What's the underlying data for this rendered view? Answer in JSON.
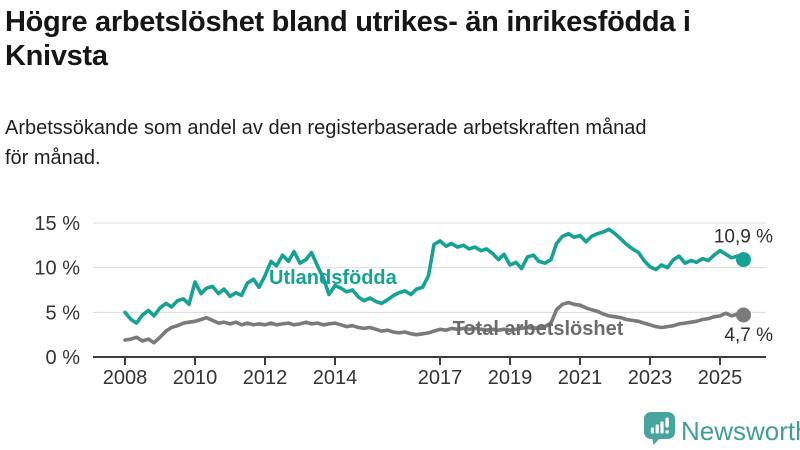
{
  "header": {
    "title": "Högre arbetslöshet bland utrikes- än inrikesfödda i\nKnivsta",
    "subtitle": "Arbetssökande som andel av den registerbaserade arbetskraften månad\nför månad."
  },
  "footer": {
    "brand": "Newsworthy",
    "logo_icon": "newsworthy-speech-bubble-bar-chart-icon"
  },
  "colors": {
    "accent_teal": "#14a294",
    "series_gray": "#7a7a7a",
    "gray_label": "#6b6b6b",
    "axis_line": "#3d3d3d",
    "gridline": "#dcdcdc",
    "tick_text": "#333333",
    "end_label_text": "#2e2e2e",
    "brand_teal": "#47a5a0"
  },
  "chart_data": {
    "type": "line",
    "title": "Högre arbetslöshet bland utrikes- än inrikesfödda i Knivsta",
    "subtitle": "Arbetssökande som andel av den registerbaserade arbetskraften månad för månad.",
    "xlabel": "",
    "ylabel": "",
    "grid": "horizontal",
    "legend_position": "inline-labels",
    "x_axis": {
      "ticks": [
        2008,
        2010,
        2012,
        2014,
        2017,
        2019,
        2021,
        2023,
        2025
      ],
      "range": [
        2007.1,
        2026.3
      ]
    },
    "y_axis": {
      "ticks": [
        0,
        5,
        10,
        15
      ],
      "tick_suffix": " %",
      "range": [
        0,
        15
      ]
    },
    "series": [
      {
        "name": "Utlandsfödda",
        "color": "#14a294",
        "label_color": "#14a294",
        "label_pos": [
          2013.94,
          8.95
        ],
        "end_label": "10,9 %",
        "end_value": 10.9,
        "points": [
          [
            2008.0,
            5.0
          ],
          [
            2008.17,
            4.2
          ],
          [
            2008.33,
            3.8
          ],
          [
            2008.5,
            4.7
          ],
          [
            2008.67,
            5.2
          ],
          [
            2008.83,
            4.6
          ],
          [
            2009.0,
            5.5
          ],
          [
            2009.17,
            6.0
          ],
          [
            2009.33,
            5.6
          ],
          [
            2009.5,
            6.3
          ],
          [
            2009.67,
            6.5
          ],
          [
            2009.83,
            5.9
          ],
          [
            2010.0,
            8.4
          ],
          [
            2010.17,
            7.1
          ],
          [
            2010.33,
            7.7
          ],
          [
            2010.5,
            7.9
          ],
          [
            2010.67,
            7.1
          ],
          [
            2010.83,
            7.6
          ],
          [
            2011.0,
            6.8
          ],
          [
            2011.17,
            7.2
          ],
          [
            2011.33,
            6.9
          ],
          [
            2011.5,
            8.3
          ],
          [
            2011.67,
            8.7
          ],
          [
            2011.83,
            7.8
          ],
          [
            2012.0,
            9.1
          ],
          [
            2012.17,
            10.7
          ],
          [
            2012.33,
            10.2
          ],
          [
            2012.5,
            11.4
          ],
          [
            2012.67,
            10.7
          ],
          [
            2012.83,
            11.8
          ],
          [
            2013.0,
            10.5
          ],
          [
            2013.17,
            10.9
          ],
          [
            2013.33,
            11.7
          ],
          [
            2013.5,
            10.2
          ],
          [
            2013.67,
            8.8
          ],
          [
            2013.83,
            7.0
          ],
          [
            2014.0,
            8.0
          ],
          [
            2014.17,
            7.7
          ],
          [
            2014.33,
            7.3
          ],
          [
            2014.5,
            7.5
          ],
          [
            2014.67,
            6.7
          ],
          [
            2014.83,
            6.3
          ],
          [
            2015.0,
            6.6
          ],
          [
            2015.17,
            6.2
          ],
          [
            2015.33,
            6.0
          ],
          [
            2015.5,
            6.4
          ],
          [
            2015.67,
            6.9
          ],
          [
            2015.83,
            7.2
          ],
          [
            2016.0,
            7.4
          ],
          [
            2016.17,
            7.0
          ],
          [
            2016.33,
            7.6
          ],
          [
            2016.5,
            7.8
          ],
          [
            2016.67,
            9.1
          ],
          [
            2016.83,
            12.6
          ],
          [
            2017.0,
            13.0
          ],
          [
            2017.17,
            12.4
          ],
          [
            2017.33,
            12.7
          ],
          [
            2017.5,
            12.3
          ],
          [
            2017.67,
            12.5
          ],
          [
            2017.83,
            12.1
          ],
          [
            2018.0,
            12.3
          ],
          [
            2018.17,
            11.9
          ],
          [
            2018.33,
            12.1
          ],
          [
            2018.5,
            11.6
          ],
          [
            2018.67,
            10.9
          ],
          [
            2018.83,
            11.5
          ],
          [
            2019.0,
            10.3
          ],
          [
            2019.17,
            10.6
          ],
          [
            2019.33,
            9.9
          ],
          [
            2019.5,
            11.2
          ],
          [
            2019.67,
            11.4
          ],
          [
            2019.83,
            10.7
          ],
          [
            2020.0,
            10.5
          ],
          [
            2020.17,
            10.9
          ],
          [
            2020.33,
            12.7
          ],
          [
            2020.5,
            13.5
          ],
          [
            2020.67,
            13.8
          ],
          [
            2020.83,
            13.4
          ],
          [
            2021.0,
            13.6
          ],
          [
            2021.17,
            12.9
          ],
          [
            2021.33,
            13.5
          ],
          [
            2021.5,
            13.8
          ],
          [
            2021.67,
            14.0
          ],
          [
            2021.83,
            14.3
          ],
          [
            2022.0,
            13.8
          ],
          [
            2022.17,
            13.2
          ],
          [
            2022.33,
            12.6
          ],
          [
            2022.5,
            12.1
          ],
          [
            2022.67,
            11.7
          ],
          [
            2022.83,
            10.8
          ],
          [
            2023.0,
            10.1
          ],
          [
            2023.17,
            9.8
          ],
          [
            2023.33,
            10.3
          ],
          [
            2023.5,
            10.0
          ],
          [
            2023.67,
            10.9
          ],
          [
            2023.83,
            11.3
          ],
          [
            2024.0,
            10.5
          ],
          [
            2024.17,
            10.8
          ],
          [
            2024.33,
            10.6
          ],
          [
            2024.5,
            11.0
          ],
          [
            2024.67,
            10.8
          ],
          [
            2024.83,
            11.4
          ],
          [
            2025.0,
            11.9
          ],
          [
            2025.17,
            11.5
          ],
          [
            2025.33,
            11.1
          ],
          [
            2025.5,
            11.3
          ],
          [
            2025.67,
            10.9
          ]
        ]
      },
      {
        "name": "Total arbetslöshet",
        "color": "#7a7a7a",
        "label_color": "#6b6b6b",
        "label_pos": [
          2019.8,
          3.25
        ],
        "end_label": "4,7 %",
        "end_value": 4.7,
        "points": [
          [
            2008.0,
            1.9
          ],
          [
            2008.17,
            2.0
          ],
          [
            2008.33,
            2.2
          ],
          [
            2008.5,
            1.8
          ],
          [
            2008.67,
            2.0
          ],
          [
            2008.83,
            1.6
          ],
          [
            2009.0,
            2.2
          ],
          [
            2009.17,
            2.9
          ],
          [
            2009.33,
            3.3
          ],
          [
            2009.5,
            3.5
          ],
          [
            2009.67,
            3.8
          ],
          [
            2009.83,
            3.9
          ],
          [
            2010.0,
            4.0
          ],
          [
            2010.17,
            4.2
          ],
          [
            2010.33,
            4.4
          ],
          [
            2010.5,
            4.1
          ],
          [
            2010.67,
            3.8
          ],
          [
            2010.83,
            3.9
          ],
          [
            2011.0,
            3.7
          ],
          [
            2011.17,
            3.9
          ],
          [
            2011.33,
            3.6
          ],
          [
            2011.5,
            3.8
          ],
          [
            2011.67,
            3.6
          ],
          [
            2011.83,
            3.7
          ],
          [
            2012.0,
            3.6
          ],
          [
            2012.17,
            3.8
          ],
          [
            2012.33,
            3.6
          ],
          [
            2012.5,
            3.7
          ],
          [
            2012.67,
            3.8
          ],
          [
            2012.83,
            3.6
          ],
          [
            2013.0,
            3.7
          ],
          [
            2013.17,
            3.9
          ],
          [
            2013.33,
            3.7
          ],
          [
            2013.5,
            3.8
          ],
          [
            2013.67,
            3.6
          ],
          [
            2013.83,
            3.7
          ],
          [
            2014.0,
            3.8
          ],
          [
            2014.17,
            3.6
          ],
          [
            2014.33,
            3.4
          ],
          [
            2014.5,
            3.5
          ],
          [
            2014.67,
            3.3
          ],
          [
            2014.83,
            3.2
          ],
          [
            2015.0,
            3.3
          ],
          [
            2015.17,
            3.1
          ],
          [
            2015.33,
            2.9
          ],
          [
            2015.5,
            3.0
          ],
          [
            2015.67,
            2.8
          ],
          [
            2015.83,
            2.7
          ],
          [
            2016.0,
            2.8
          ],
          [
            2016.17,
            2.6
          ],
          [
            2016.33,
            2.5
          ],
          [
            2016.5,
            2.6
          ],
          [
            2016.67,
            2.7
          ],
          [
            2016.83,
            2.9
          ],
          [
            2017.0,
            3.1
          ],
          [
            2017.17,
            3.0
          ],
          [
            2017.33,
            3.2
          ],
          [
            2017.5,
            3.1
          ],
          [
            2017.67,
            3.2
          ],
          [
            2017.83,
            3.1
          ],
          [
            2018.0,
            3.2
          ],
          [
            2018.17,
            3.1
          ],
          [
            2018.33,
            3.0
          ],
          [
            2018.5,
            3.1
          ],
          [
            2018.67,
            3.0
          ],
          [
            2018.83,
            3.1
          ],
          [
            2019.0,
            3.0
          ],
          [
            2019.17,
            3.1
          ],
          [
            2019.33,
            3.2
          ],
          [
            2019.5,
            3.3
          ],
          [
            2019.67,
            3.2
          ],
          [
            2019.83,
            3.3
          ],
          [
            2020.0,
            3.4
          ],
          [
            2020.17,
            3.8
          ],
          [
            2020.33,
            5.3
          ],
          [
            2020.5,
            5.9
          ],
          [
            2020.67,
            6.1
          ],
          [
            2020.83,
            5.9
          ],
          [
            2021.0,
            5.8
          ],
          [
            2021.17,
            5.5
          ],
          [
            2021.33,
            5.3
          ],
          [
            2021.5,
            5.1
          ],
          [
            2021.67,
            4.8
          ],
          [
            2021.83,
            4.6
          ],
          [
            2022.0,
            4.5
          ],
          [
            2022.17,
            4.4
          ],
          [
            2022.33,
            4.2
          ],
          [
            2022.5,
            4.1
          ],
          [
            2022.67,
            4.0
          ],
          [
            2022.83,
            3.8
          ],
          [
            2023.0,
            3.6
          ],
          [
            2023.17,
            3.4
          ],
          [
            2023.33,
            3.3
          ],
          [
            2023.5,
            3.4
          ],
          [
            2023.67,
            3.5
          ],
          [
            2023.83,
            3.7
          ],
          [
            2024.0,
            3.8
          ],
          [
            2024.17,
            3.9
          ],
          [
            2024.33,
            4.0
          ],
          [
            2024.5,
            4.2
          ],
          [
            2024.67,
            4.3
          ],
          [
            2024.83,
            4.5
          ],
          [
            2025.0,
            4.6
          ],
          [
            2025.17,
            4.9
          ],
          [
            2025.33,
            4.6
          ],
          [
            2025.5,
            4.8
          ],
          [
            2025.67,
            4.7
          ]
        ]
      }
    ]
  }
}
